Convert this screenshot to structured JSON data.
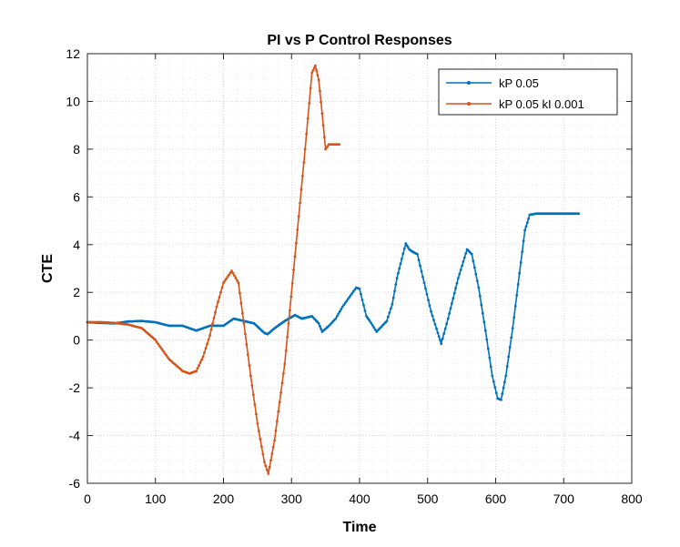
{
  "chart_data": {
    "type": "line",
    "title": "PI vs P Control Responses",
    "xlabel": "Time",
    "ylabel": "CTE",
    "xlim": [
      0,
      800
    ],
    "ylim": [
      -6,
      12
    ],
    "xticks": [
      "0",
      "100",
      "200",
      "300",
      "400",
      "500",
      "600",
      "700",
      "800"
    ],
    "yticks": [
      "-6",
      "-4",
      "-2",
      "0",
      "2",
      "4",
      "6",
      "8",
      "10",
      "12"
    ],
    "grid": "major and minor, dotted",
    "legend_position": "top-right",
    "series": [
      {
        "name": "kP 0.05",
        "color": "#0072BD",
        "marker": "dot",
        "x": [
          0,
          20,
          40,
          60,
          80,
          100,
          120,
          140,
          160,
          180,
          200,
          215,
          230,
          245,
          260,
          265,
          275,
          290,
          305,
          315,
          330,
          340,
          345,
          355,
          365,
          375,
          385,
          395,
          400,
          410,
          415,
          425,
          440,
          448,
          455,
          462,
          468,
          473,
          478,
          485,
          495,
          505,
          515,
          520,
          530,
          545,
          558,
          565,
          575,
          585,
          595,
          603,
          608,
          615,
          625,
          635,
          643,
          650,
          660,
          680,
          700,
          722
        ],
        "y": [
          0.75,
          0.72,
          0.7,
          0.78,
          0.8,
          0.75,
          0.6,
          0.6,
          0.4,
          0.6,
          0.6,
          0.9,
          0.8,
          0.7,
          0.3,
          0.25,
          0.5,
          0.8,
          1.05,
          0.9,
          1.0,
          0.7,
          0.35,
          0.6,
          0.9,
          1.4,
          1.8,
          2.2,
          2.15,
          1.0,
          0.8,
          0.35,
          0.8,
          1.5,
          2.6,
          3.4,
          4.05,
          3.8,
          3.7,
          3.6,
          2.4,
          1.2,
          0.3,
          -0.15,
          0.9,
          2.6,
          3.8,
          3.6,
          2.2,
          0.4,
          -1.5,
          -2.45,
          -2.5,
          -1.5,
          0.5,
          2.8,
          4.6,
          5.25,
          5.3,
          5.3,
          5.3,
          5.3
        ]
      },
      {
        "name": "kP 0.05 kI 0.001",
        "color": "#D95319",
        "marker": "dot",
        "x": [
          0,
          20,
          40,
          60,
          80,
          100,
          120,
          140,
          150,
          160,
          170,
          180,
          190,
          200,
          212,
          222,
          230,
          240,
          250,
          260,
          266,
          275,
          290,
          305,
          320,
          330,
          335,
          340,
          345,
          350,
          355,
          360,
          370
        ],
        "y": [
          0.75,
          0.75,
          0.72,
          0.65,
          0.5,
          0.0,
          -0.8,
          -1.3,
          -1.4,
          -1.3,
          -0.7,
          0.2,
          1.4,
          2.4,
          2.9,
          2.4,
          0.7,
          -1.5,
          -3.5,
          -5.1,
          -5.6,
          -4.2,
          -1.0,
          3.5,
          8.0,
          11.2,
          11.5,
          10.9,
          9.5,
          8.0,
          8.2,
          8.2,
          8.2
        ]
      }
    ]
  }
}
